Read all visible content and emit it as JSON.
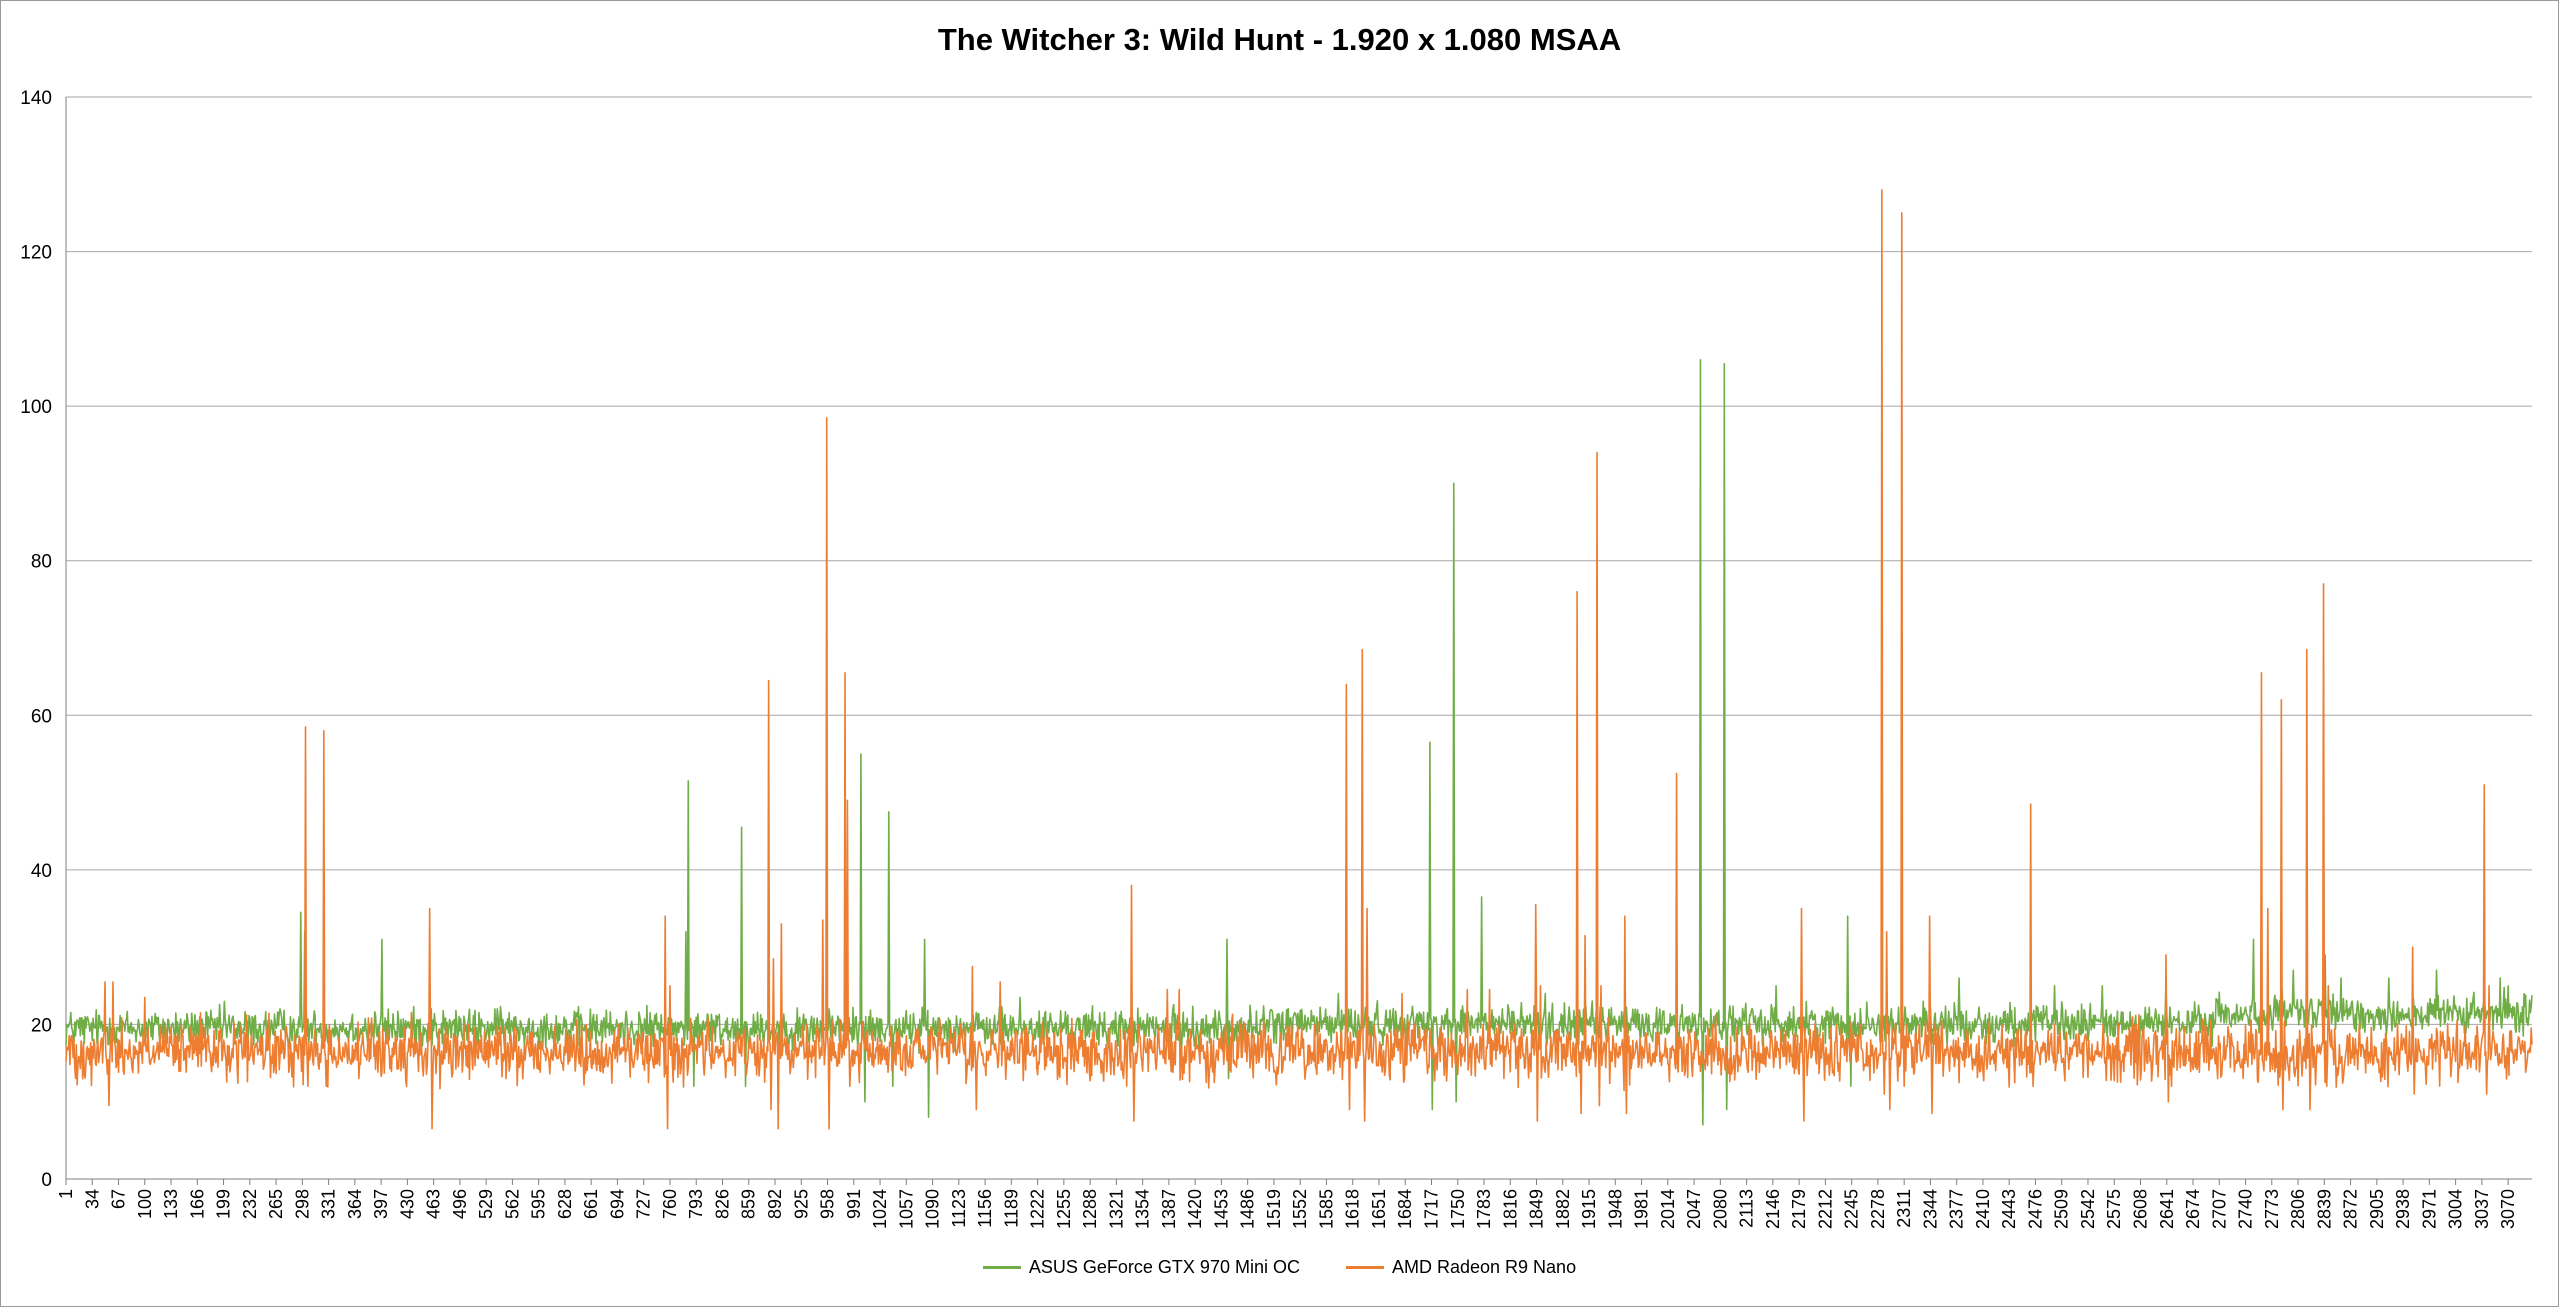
{
  "chart_data": {
    "type": "line",
    "title": "The Witcher 3: Wild Hunt - 1.920 x 1.080 MSAA",
    "xlabel": "",
    "ylabel": "",
    "ylim": [
      0,
      140
    ],
    "xlim": [
      1,
      3100
    ],
    "yticks": [
      0,
      20,
      40,
      60,
      80,
      100,
      120,
      140
    ],
    "xticks": [
      1,
      34,
      67,
      100,
      133,
      166,
      199,
      232,
      265,
      298,
      331,
      364,
      397,
      430,
      463,
      496,
      529,
      562,
      595,
      628,
      661,
      694,
      727,
      760,
      793,
      826,
      859,
      892,
      925,
      958,
      991,
      1024,
      1057,
      1090,
      1123,
      1156,
      1189,
      1222,
      1255,
      1288,
      1321,
      1354,
      1387,
      1420,
      1453,
      1486,
      1519,
      1552,
      1585,
      1618,
      1651,
      1684,
      1717,
      1750,
      1783,
      1816,
      1849,
      1882,
      1915,
      1948,
      1981,
      2014,
      2047,
      2080,
      2113,
      2146,
      2179,
      2212,
      2245,
      2278,
      2311,
      2344,
      2377,
      2410,
      2443,
      2476,
      2509,
      2542,
      2575,
      2608,
      2641,
      2674,
      2707,
      2740,
      2773,
      2806,
      2839,
      2872,
      2905,
      2938,
      2971,
      3004,
      3037,
      3070
    ],
    "grid": true,
    "legend_position": "bottom",
    "series": [
      {
        "name": "ASUS GeForce GTX 970 Mini OC",
        "color": "#70ad47",
        "baseline": 19.5,
        "noise": 1.2,
        "x": [
          60,
          120,
          200,
          270,
          296,
          301,
          398,
          460,
          540,
          780,
          783,
          790,
          850,
          855,
          900,
          960,
          1000,
          1005,
          1010,
          1035,
          1040,
          1080,
          1085,
          1200,
          1460,
          1462,
          1600,
          1715,
          1718,
          1720,
          1745,
          1748,
          1780,
          1860,
          1900,
          2055,
          2058,
          2060,
          2085,
          2088,
          2150,
          2240,
          2244,
          2335,
          2380,
          2500,
          2560,
          2640,
          2750,
          2755,
          2800,
          2840,
          2860,
          2920,
          2980,
          3060,
          3070,
          3090
        ],
        "y": [
          21,
          20,
          23,
          22,
          34.5,
          32,
          31,
          22,
          22,
          32,
          51.5,
          12,
          45.5,
          12,
          20,
          22,
          55,
          10,
          21,
          47.5,
          12,
          31,
          8,
          23.5,
          31,
          13,
          24,
          56.5,
          9,
          21,
          90,
          10,
          36.5,
          24,
          24,
          106,
          7,
          20,
          105.5,
          9,
          25,
          34,
          12,
          23,
          26,
          25,
          25,
          25,
          31,
          20,
          27,
          29,
          26,
          26,
          27,
          26,
          25,
          24
        ]
      },
      {
        "name": "AMD Radeon R9 Nano",
        "color": "#ed7d31",
        "baseline": 16.5,
        "noise": 1.8,
        "x": [
          50,
          55,
          60,
          65,
          100,
          170,
          302,
          305,
          325,
          328,
          338,
          458,
          461,
          754,
          757,
          760,
          884,
          887,
          890,
          896,
          900,
          952,
          957,
          960,
          980,
          983,
          986,
          1000,
          1140,
          1145,
          1175,
          1340,
          1343,
          1385,
          1400,
          1408,
          1610,
          1614,
          1630,
          1633,
          1636,
          1680,
          1760,
          1762,
          1790,
          1848,
          1850,
          1854,
          1900,
          1905,
          1910,
          1925,
          1928,
          1930,
          1960,
          1962,
          2025,
          2182,
          2185,
          2283,
          2286,
          2289,
          2293,
          2308,
          2311,
          2314,
          2343,
          2346,
          2470,
          2473,
          2640,
          2643,
          2760,
          2763,
          2768,
          2785,
          2787,
          2817,
          2821,
          2838,
          2842,
          2844,
          2950,
          2952,
          3040,
          3043,
          3046,
          3060
        ],
        "y": [
          25.5,
          9.5,
          25.5,
          15,
          23.5,
          21.5,
          58.5,
          12,
          58,
          12,
          17,
          35,
          6.5,
          34,
          6.5,
          25,
          64.5,
          9,
          28.5,
          6.5,
          33,
          33.5,
          98.5,
          6.5,
          65.5,
          49,
          12,
          15,
          27.5,
          9,
          25.5,
          38,
          7.5,
          24.5,
          24.5,
          15,
          64,
          9,
          68.5,
          7.5,
          35,
          24,
          21,
          24.5,
          24.5,
          35.5,
          7.5,
          25,
          76,
          8.5,
          31.5,
          94,
          9.5,
          25,
          34,
          8.5,
          52.5,
          35,
          7.5,
          128,
          11,
          32,
          9,
          125,
          12,
          20,
          34,
          8.5,
          48.5,
          12,
          29,
          10,
          65.5,
          14,
          35,
          62,
          9,
          68.5,
          9,
          77,
          12,
          25,
          30,
          11,
          51,
          11,
          25,
          15
        ]
      }
    ]
  }
}
